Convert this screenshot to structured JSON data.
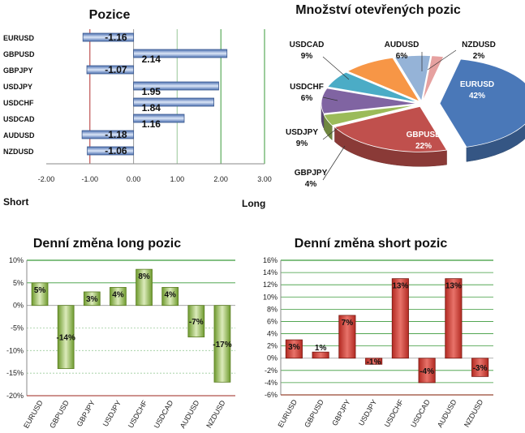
{
  "colors": {
    "pos_bar": "#4f6fb3",
    "long_bar": "#8db04a",
    "short_bar": "#c0392b",
    "grid_green": "#3a9a3a",
    "axis_red": "#b03030"
  },
  "chart_data": [
    {
      "type": "bar",
      "orientation": "horizontal",
      "title": "Pozice",
      "categories": [
        "EURUSD",
        "GBPUSD",
        "GBPJPY",
        "USDJPY",
        "USDCHF",
        "USDCAD",
        "AUDUSD",
        "NZDUSD"
      ],
      "values": [
        -1.16,
        2.14,
        -1.07,
        1.95,
        1.84,
        1.16,
        -1.18,
        -1.06
      ],
      "data_labels": [
        "-1.16",
        "2.14",
        "-1.07",
        "1.95",
        "1.84",
        "1.16",
        "-1.18",
        "-1.06"
      ],
      "xlim": [
        -2,
        3
      ],
      "xticks": [
        "-2.00",
        "-1.00",
        "0.00",
        "1.00",
        "2.00",
        "3.00"
      ],
      "left_label": "Short",
      "right_label": "Long"
    },
    {
      "type": "pie",
      "title": "Množství otevřených pozic",
      "labels": [
        "EURUSD",
        "GBPUSD",
        "GBPJPY",
        "USDJPY",
        "USDCHF",
        "USDCAD",
        "AUDUSD",
        "NZDUSD"
      ],
      "values": [
        42,
        22,
        4,
        9,
        6,
        9,
        6,
        2
      ],
      "value_labels": [
        "42%",
        "22%",
        "4%",
        "9%",
        "6%",
        "9%",
        "6%",
        "2%"
      ],
      "colors": [
        "#4a78b8",
        "#c0504d",
        "#9bbb59",
        "#8064a2",
        "#4bacc6",
        "#f79646",
        "#95b3d7",
        "#e6a1a0"
      ]
    },
    {
      "type": "bar",
      "title": "Denní změna long pozic",
      "categories": [
        "EURUSD",
        "GBPUSD",
        "GBPJPY",
        "USDJPY",
        "USDCHF",
        "USDCAD",
        "AUDUSD",
        "NZDUSD"
      ],
      "values": [
        5,
        -14,
        3,
        4,
        8,
        4,
        -7,
        -17
      ],
      "data_labels": [
        "5%",
        "-14%",
        "3%",
        "4%",
        "8%",
        "4%",
        "-7%",
        "-17%"
      ],
      "ylim": [
        -20,
        10
      ],
      "yticks": [
        "10%",
        "5%",
        "0%",
        "-5%",
        "-10%",
        "-15%",
        "-20%"
      ]
    },
    {
      "type": "bar",
      "title": "Denní změna short pozic",
      "categories": [
        "EURUSD",
        "GBPUSD",
        "GBPJPY",
        "USDJPY",
        "USDCHF",
        "USDCAD",
        "AUDUSD",
        "NZDUSD"
      ],
      "values": [
        3,
        1,
        7,
        -1,
        13,
        -4,
        13,
        -3
      ],
      "data_labels": [
        "3%",
        "1%",
        "7%",
        "-1%",
        "13%",
        "-4%",
        "13%",
        "-3%"
      ],
      "ylim": [
        -6,
        16
      ],
      "yticks": [
        "16%",
        "14%",
        "12%",
        "10%",
        "8%",
        "6%",
        "4%",
        "2%",
        "0%",
        "-2%",
        "-4%",
        "-6%"
      ]
    }
  ]
}
